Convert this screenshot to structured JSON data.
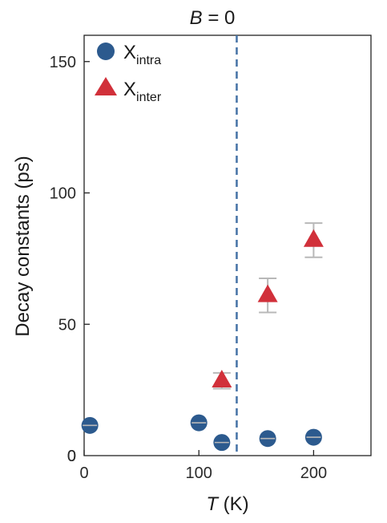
{
  "chart_data": {
    "type": "scatter",
    "title": "B = 0",
    "title_var": "B",
    "title_rest": " = 0",
    "xlabel": "T (K)",
    "xlabel_var": "T",
    "xlabel_rest": " (K)",
    "ylabel": "Decay constants (ps)",
    "xlim": [
      0,
      250
    ],
    "ylim": [
      0,
      160
    ],
    "xticks": [
      0,
      100,
      200
    ],
    "yticks": [
      0,
      50,
      100,
      150
    ],
    "vline": 133,
    "legend_position": "top-left",
    "grid": false,
    "series": [
      {
        "name": "X_intra",
        "label_main": "X",
        "label_sub": "intra",
        "marker": "circle",
        "color": "#2c5a8e",
        "points": [
          {
            "x": 5,
            "y": 11.5,
            "err": 0
          },
          {
            "x": 100,
            "y": 12.5,
            "err": 0
          },
          {
            "x": 120,
            "y": 5,
            "err": 0
          },
          {
            "x": 160,
            "y": 6.5,
            "err": 0
          },
          {
            "x": 200,
            "y": 7,
            "err": 0
          }
        ]
      },
      {
        "name": "X_inter",
        "label_main": "X",
        "label_sub": "inter",
        "marker": "triangle",
        "color": "#d1303a",
        "points": [
          {
            "x": 120,
            "y": 28.5,
            "err": 3
          },
          {
            "x": 160,
            "y": 61,
            "err": 6.5
          },
          {
            "x": 200,
            "y": 82,
            "err": 6.5
          }
        ]
      }
    ]
  },
  "colors": {
    "axis": "#222222",
    "errorbar": "#b8b8b8",
    "vline": "#4a76a8"
  }
}
